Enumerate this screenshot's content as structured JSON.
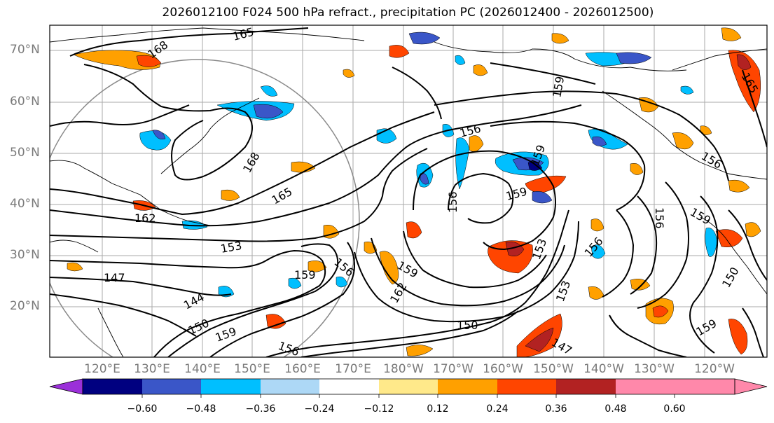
{
  "title": "2026012100 F024 500 hPa refract., precipitation PC (2026012400 - 2026012500)",
  "lat_labels": [
    "70°N",
    "60°N",
    "50°N",
    "40°N",
    "30°N",
    "20°N"
  ],
  "lon_labels": [
    "120°E",
    "130°E",
    "140°E",
    "150°E",
    "160°E",
    "170°E",
    "180°W",
    "170°W",
    "160°W",
    "150°W",
    "140°W",
    "130°W",
    "120°W"
  ],
  "contour_labels": [
    "165",
    "168",
    "168",
    "165",
    "162",
    "153",
    "147",
    "144",
    "150",
    "159",
    "156",
    "159",
    "156",
    "162",
    "150",
    "156",
    "159",
    "156",
    "159",
    "153",
    "153",
    "147",
    "156",
    "159",
    "156",
    "159",
    "156",
    "150",
    "159",
    "165",
    "159"
  ],
  "colorbar": {
    "ticks": [
      "−0.60",
      "−0.48",
      "−0.36",
      "−0.24",
      "−0.12",
      "0.12",
      "0.24",
      "0.36",
      "0.48",
      "0.60"
    ],
    "colors": [
      "#9b30d9",
      "#000080",
      "#3a56c8",
      "#00bfff",
      "#add8f6",
      "#ffffff",
      "#ffe98a",
      "#ffa000",
      "#ff4500",
      "#b22222",
      "#ff88aa",
      "#ff88aa"
    ]
  }
}
